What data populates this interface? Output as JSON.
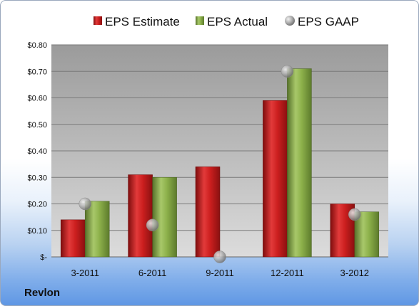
{
  "company": "Revlon",
  "chart_data": {
    "type": "bar",
    "categories": [
      "3-2011",
      "6-2011",
      "9-2011",
      "12-2011",
      "3-2012"
    ],
    "series": [
      {
        "name": "EPS Estimate",
        "type": "bar",
        "values": [
          0.14,
          0.31,
          0.34,
          0.59,
          0.2
        ],
        "color": "#cc1f1f"
      },
      {
        "name": "EPS Actual",
        "type": "bar",
        "values": [
          0.21,
          0.3,
          null,
          0.71,
          0.17
        ],
        "color": "#8cb04a"
      },
      {
        "name": "EPS GAAP",
        "type": "scatter",
        "values": [
          0.2,
          0.12,
          0.0,
          0.7,
          0.16
        ],
        "color": "#a6a6a6"
      }
    ],
    "ylim": [
      0,
      0.8
    ],
    "yticks": [
      0,
      0.1,
      0.2,
      0.3,
      0.4,
      0.5,
      0.6,
      0.7,
      0.8
    ],
    "ytick_labels": [
      "$-",
      "$0.10",
      "$0.20",
      "$0.30",
      "$0.40",
      "$0.50",
      "$0.60",
      "$0.70",
      "$0.80"
    ],
    "grid": true,
    "legend_position": "top"
  }
}
